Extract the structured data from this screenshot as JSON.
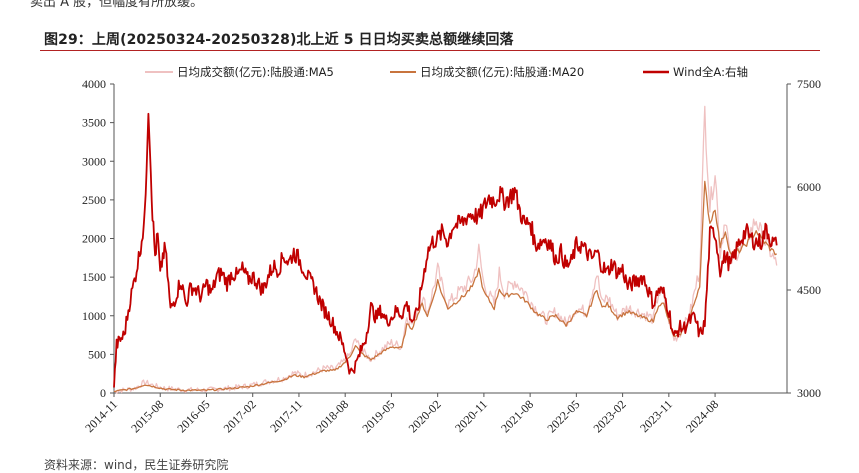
{
  "header": {
    "top_fragment": "卖出 A 股，但幅度有所放缓。",
    "figure_title": "图29：上周(20250324-20250328)北上近 5 日日均买卖总额继续回落"
  },
  "footer": {
    "source": "资料来源：wind，民生证券研究院"
  },
  "chart_data": {
    "type": "line",
    "title": "图29：上周(20250324-20250328)北上近 5 日日均买卖总额继续回落",
    "x_tick_labels": [
      "2014-11",
      "2015-08",
      "2016-05",
      "2017-02",
      "2017-11",
      "2018-08",
      "2019-05",
      "2020-02",
      "2020-11",
      "2021-08",
      "2022-05",
      "2023-02",
      "2023-11",
      "2024-08"
    ],
    "y_left_ticks": [
      "0",
      "500",
      "1000",
      "1500",
      "2000",
      "2500",
      "3000",
      "3500",
      "4000"
    ],
    "y_right_ticks": [
      "3000",
      "4500",
      "6000",
      "7500"
    ],
    "ylim_left": [
      0,
      4000
    ],
    "ylim_right": [
      3000,
      7500
    ],
    "x_range_months": [
      0,
      131
    ],
    "series": [
      {
        "name": "日均成交额(亿元):陆股通:MA5",
        "color": "#efc1c1",
        "axis": "left",
        "anchors": [
          [
            0,
            20
          ],
          [
            4,
            60
          ],
          [
            6,
            140
          ],
          [
            8,
            90
          ],
          [
            10,
            60
          ],
          [
            14,
            40
          ],
          [
            18,
            40
          ],
          [
            22,
            60
          ],
          [
            26,
            90
          ],
          [
            30,
            150
          ],
          [
            33,
            190
          ],
          [
            35,
            260
          ],
          [
            37,
            230
          ],
          [
            39,
            270
          ],
          [
            41,
            320
          ],
          [
            43,
            310
          ],
          [
            45,
            420
          ],
          [
            46,
            500
          ],
          [
            47,
            700
          ],
          [
            48,
            560
          ],
          [
            50,
            440
          ],
          [
            52,
            560
          ],
          [
            54,
            650
          ],
          [
            56,
            600
          ],
          [
            57,
            1000
          ],
          [
            58,
            900
          ],
          [
            60,
            1250
          ],
          [
            61,
            1050
          ],
          [
            62,
            1300
          ],
          [
            63,
            1600
          ],
          [
            64,
            1350
          ],
          [
            65,
            1150
          ],
          [
            67,
            1300
          ],
          [
            68,
            1350
          ],
          [
            70,
            1500
          ],
          [
            71,
            1850
          ],
          [
            72,
            1400
          ],
          [
            74,
            1150
          ],
          [
            75,
            1550
          ],
          [
            76,
            1300
          ],
          [
            78,
            1450
          ],
          [
            80,
            1300
          ],
          [
            82,
            1100
          ],
          [
            84,
            950
          ],
          [
            86,
            1050
          ],
          [
            88,
            900
          ],
          [
            90,
            1100
          ],
          [
            92,
            1050
          ],
          [
            94,
            1550
          ],
          [
            95,
            1150
          ],
          [
            96,
            1250
          ],
          [
            98,
            1000
          ],
          [
            100,
            1100
          ],
          [
            102,
            1050
          ],
          [
            104,
            1000
          ],
          [
            105,
            950
          ],
          [
            106,
            1300
          ],
          [
            107,
            1250
          ],
          [
            108,
            950
          ],
          [
            109,
            700
          ],
          [
            110,
            750
          ],
          [
            112,
            1000
          ],
          [
            114,
            1600
          ],
          [
            115,
            3650
          ],
          [
            116,
            2400
          ],
          [
            117,
            2900
          ],
          [
            118,
            1800
          ],
          [
            119,
            2300
          ],
          [
            120,
            1700
          ],
          [
            122,
            1900
          ],
          [
            124,
            2100
          ],
          [
            125,
            2250
          ],
          [
            126,
            2050
          ],
          [
            128,
            1800
          ],
          [
            129,
            1650
          ]
        ]
      },
      {
        "name": "日均成交额(亿元):陆股通:MA20",
        "color": "#c8743e",
        "axis": "left",
        "anchors": [
          [
            0,
            20
          ],
          [
            4,
            60
          ],
          [
            6,
            110
          ],
          [
            8,
            80
          ],
          [
            10,
            50
          ],
          [
            14,
            35
          ],
          [
            18,
            35
          ],
          [
            22,
            55
          ],
          [
            26,
            80
          ],
          [
            30,
            130
          ],
          [
            33,
            170
          ],
          [
            35,
            230
          ],
          [
            37,
            210
          ],
          [
            39,
            250
          ],
          [
            41,
            290
          ],
          [
            43,
            290
          ],
          [
            45,
            400
          ],
          [
            46,
            480
          ],
          [
            47,
            620
          ],
          [
            48,
            520
          ],
          [
            50,
            430
          ],
          [
            52,
            520
          ],
          [
            54,
            600
          ],
          [
            56,
            580
          ],
          [
            57,
            880
          ],
          [
            58,
            840
          ],
          [
            60,
            1150
          ],
          [
            61,
            1000
          ],
          [
            62,
            1200
          ],
          [
            63,
            1450
          ],
          [
            64,
            1250
          ],
          [
            65,
            1100
          ],
          [
            67,
            1200
          ],
          [
            68,
            1250
          ],
          [
            70,
            1400
          ],
          [
            71,
            1600
          ],
          [
            72,
            1300
          ],
          [
            74,
            1100
          ],
          [
            75,
            1350
          ],
          [
            76,
            1250
          ],
          [
            78,
            1300
          ],
          [
            80,
            1200
          ],
          [
            82,
            1050
          ],
          [
            84,
            950
          ],
          [
            86,
            1000
          ],
          [
            88,
            880
          ],
          [
            90,
            1050
          ],
          [
            92,
            1000
          ],
          [
            94,
            1350
          ],
          [
            95,
            1100
          ],
          [
            96,
            1150
          ],
          [
            98,
            980
          ],
          [
            100,
            1050
          ],
          [
            102,
            1000
          ],
          [
            104,
            950
          ],
          [
            105,
            930
          ],
          [
            106,
            1150
          ],
          [
            107,
            1150
          ],
          [
            108,
            930
          ],
          [
            109,
            720
          ],
          [
            110,
            740
          ],
          [
            112,
            950
          ],
          [
            114,
            1400
          ],
          [
            115,
            2700
          ],
          [
            116,
            2200
          ],
          [
            117,
            2400
          ],
          [
            118,
            1900
          ],
          [
            119,
            2100
          ],
          [
            120,
            1800
          ],
          [
            122,
            1850
          ],
          [
            124,
            2000
          ],
          [
            125,
            2100
          ],
          [
            126,
            2000
          ],
          [
            128,
            1850
          ],
          [
            129,
            1800
          ]
        ]
      },
      {
        "name": "Wind全A:右轴",
        "color": "#c00000",
        "axis": "right",
        "anchors": [
          [
            0,
            3100
          ],
          [
            0.5,
            3700
          ],
          [
            2,
            3850
          ],
          [
            3,
            4300
          ],
          [
            4,
            4650
          ],
          [
            5,
            5050
          ],
          [
            6,
            5550
          ],
          [
            6.7,
            7200
          ],
          [
            7,
            6600
          ],
          [
            7.5,
            5600
          ],
          [
            8,
            5000
          ],
          [
            8.5,
            5300
          ],
          [
            9,
            4700
          ],
          [
            9.5,
            5000
          ],
          [
            10,
            5100
          ],
          [
            11,
            4200
          ],
          [
            12,
            4400
          ],
          [
            13,
            4650
          ],
          [
            14,
            4300
          ],
          [
            15,
            4550
          ],
          [
            16,
            4500
          ],
          [
            17,
            4400
          ],
          [
            18,
            4600
          ],
          [
            19,
            4450
          ],
          [
            20,
            4700
          ],
          [
            21,
            4750
          ],
          [
            22,
            4600
          ],
          [
            23,
            4750
          ],
          [
            24,
            4700
          ],
          [
            25,
            4800
          ],
          [
            26,
            4650
          ],
          [
            27,
            4700
          ],
          [
            28,
            4600
          ],
          [
            29,
            4500
          ],
          [
            30,
            4700
          ],
          [
            31,
            4850
          ],
          [
            32,
            4800
          ],
          [
            33,
            5000
          ],
          [
            34,
            4900
          ],
          [
            35,
            5050
          ],
          [
            36,
            4950
          ],
          [
            37,
            4800
          ],
          [
            38,
            4650
          ],
          [
            39,
            4550
          ],
          [
            40,
            4350
          ],
          [
            41,
            4200
          ],
          [
            42,
            4100
          ],
          [
            43,
            3950
          ],
          [
            44,
            3800
          ],
          [
            45,
            3600
          ],
          [
            46,
            3300
          ],
          [
            47,
            3400
          ],
          [
            48,
            3600
          ],
          [
            49,
            3800
          ],
          [
            50,
            4250
          ],
          [
            51,
            4100
          ],
          [
            52,
            4200
          ],
          [
            53,
            4050
          ],
          [
            54,
            4100
          ],
          [
            55,
            4200
          ],
          [
            56,
            4150
          ],
          [
            57,
            4300
          ],
          [
            58,
            4050
          ],
          [
            59,
            4150
          ],
          [
            60,
            4600
          ],
          [
            61,
            5050
          ],
          [
            62,
            5200
          ],
          [
            63,
            5250
          ],
          [
            64,
            5350
          ],
          [
            65,
            5200
          ],
          [
            66,
            5450
          ],
          [
            67,
            5450
          ],
          [
            68,
            5500
          ],
          [
            69,
            5600
          ],
          [
            70,
            5600
          ],
          [
            71,
            5550
          ],
          [
            72,
            5700
          ],
          [
            73,
            5850
          ],
          [
            74,
            5800
          ],
          [
            75,
            5900
          ],
          [
            76,
            5800
          ],
          [
            77,
            5850
          ],
          [
            78,
            5950
          ],
          [
            79,
            5650
          ],
          [
            80,
            5450
          ],
          [
            81,
            5500
          ],
          [
            82,
            5150
          ],
          [
            83,
            5200
          ],
          [
            84,
            5250
          ],
          [
            85,
            5150
          ],
          [
            86,
            4950
          ],
          [
            87,
            5050
          ],
          [
            88,
            4850
          ],
          [
            89,
            4900
          ],
          [
            90,
            5150
          ],
          [
            91,
            5150
          ],
          [
            92,
            5050
          ],
          [
            93,
            4950
          ],
          [
            94,
            5050
          ],
          [
            95,
            4850
          ],
          [
            96,
            4750
          ],
          [
            97,
            4900
          ],
          [
            98,
            4750
          ],
          [
            99,
            4800
          ],
          [
            100,
            4550
          ],
          [
            101,
            4600
          ],
          [
            102,
            4650
          ],
          [
            103,
            4700
          ],
          [
            104,
            4500
          ],
          [
            105,
            4300
          ],
          [
            106,
            4500
          ],
          [
            107,
            4450
          ],
          [
            108,
            4200
          ],
          [
            109,
            3800
          ],
          [
            110,
            3950
          ],
          [
            111,
            3950
          ],
          [
            112,
            4050
          ],
          [
            113,
            4100
          ],
          [
            114,
            3850
          ],
          [
            115,
            4000
          ],
          [
            116,
            5300
          ],
          [
            117,
            5350
          ],
          [
            118,
            4800
          ],
          [
            119,
            5000
          ],
          [
            120,
            4850
          ],
          [
            121,
            5050
          ],
          [
            122,
            5250
          ],
          [
            123,
            5350
          ],
          [
            124,
            5250
          ],
          [
            125,
            5200
          ],
          [
            126,
            5200
          ],
          [
            127,
            5400
          ],
          [
            128,
            5200
          ],
          [
            129,
            5150
          ]
        ]
      }
    ]
  }
}
